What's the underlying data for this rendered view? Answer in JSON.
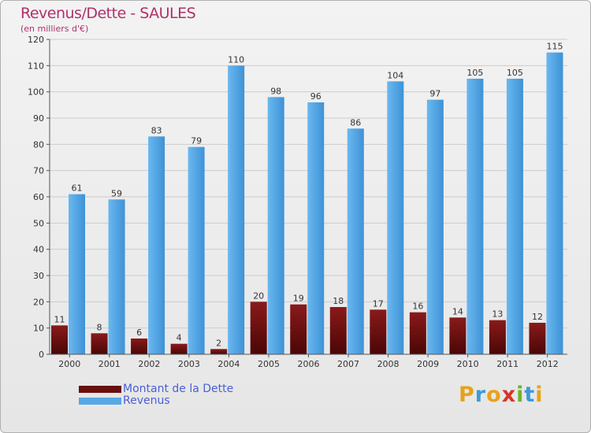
{
  "title": "Revenus/Dette - SAULES",
  "subtitle": "(en milliers d'€)",
  "legend": {
    "debt_label": "Montant de la Dette",
    "revenue_label": "Revenus"
  },
  "logo": {
    "letters": [
      "P",
      "r",
      "o",
      "x",
      "i",
      "t",
      "i"
    ]
  },
  "colors": {
    "debt": "#7a1414",
    "revenue": "#57a9e6",
    "axis_text": "#333333",
    "gridline": "#cccccc"
  },
  "chart_data": {
    "type": "bar",
    "title": "Revenus/Dette - SAULES",
    "ylabel": "(en milliers d'€)",
    "xlabel": "",
    "ylim": [
      0,
      120
    ],
    "yticks": [
      0,
      10,
      20,
      30,
      40,
      50,
      60,
      70,
      80,
      90,
      100,
      110,
      120
    ],
    "categories": [
      "2000",
      "2001",
      "2002",
      "2003",
      "2004",
      "2005",
      "2006",
      "2007",
      "2008",
      "2009",
      "2010",
      "2011",
      "2012"
    ],
    "series": [
      {
        "name": "Montant de la Dette",
        "values": [
          11,
          8,
          6,
          4,
          2,
          20,
          19,
          18,
          17,
          16,
          14,
          13,
          12
        ]
      },
      {
        "name": "Revenus",
        "values": [
          61,
          59,
          83,
          79,
          110,
          98,
          96,
          86,
          104,
          97,
          105,
          105,
          115
        ]
      }
    ],
    "grid": true,
    "legend_position": "bottom-left"
  }
}
